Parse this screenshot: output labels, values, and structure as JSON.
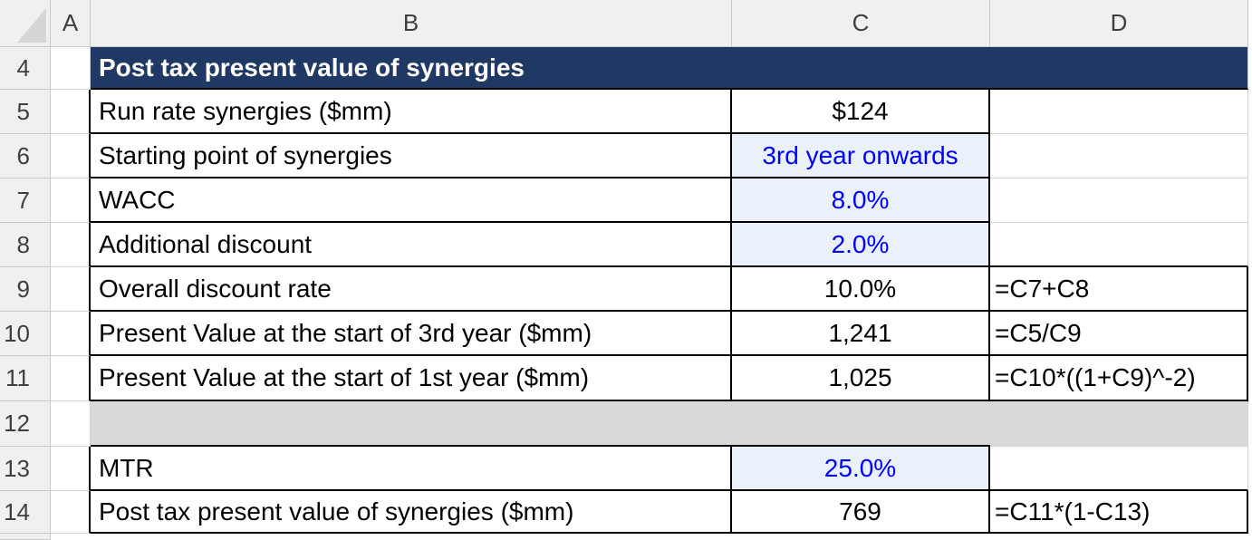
{
  "sheet": {
    "column_headers": [
      "A",
      "B",
      "C",
      "D"
    ],
    "row_numbers": [
      "4",
      "5",
      "6",
      "7",
      "8",
      "9",
      "10",
      "11",
      "12",
      "13",
      "14"
    ],
    "title": "Post tax present value of synergies",
    "rows": [
      {
        "row": "5",
        "label": "Run rate synergies ($mm)",
        "value": "$124",
        "formula": ""
      },
      {
        "row": "6",
        "label": "Starting point of synergies",
        "value": "3rd year onwards",
        "formula": ""
      },
      {
        "row": "7",
        "label": "WACC",
        "value": "8.0%",
        "formula": ""
      },
      {
        "row": "8",
        "label": "Additional discount",
        "value": "2.0%",
        "formula": ""
      },
      {
        "row": "9",
        "label": "Overall discount rate",
        "value": "10.0%",
        "formula": "=C7+C8"
      },
      {
        "row": "10",
        "label": "Present Value at the start of 3rd year ($mm)",
        "value": "1,241",
        "formula": "=C5/C9"
      },
      {
        "row": "11",
        "label": "Present Value at the start of 1st year ($mm)",
        "value": "1,025",
        "formula": "=C10*((1+C9)^-2)"
      },
      {
        "row": "13",
        "label": "MTR",
        "value": "25.0%",
        "formula": ""
      },
      {
        "row": "14",
        "label": "Post tax present value of synergies ($mm)",
        "value": "769",
        "formula": "=C11*(1-C13)"
      }
    ],
    "colors": {
      "title_fill": "#1F3864",
      "title_text": "#FFFFFF",
      "input_fill": "#EAF1FA",
      "input_text": "#0000FF",
      "spacer_fill": "#D9D9D9",
      "header_fill": "#F0F0F0",
      "gridline": "#D2D2D2",
      "border": "#000000"
    }
  }
}
